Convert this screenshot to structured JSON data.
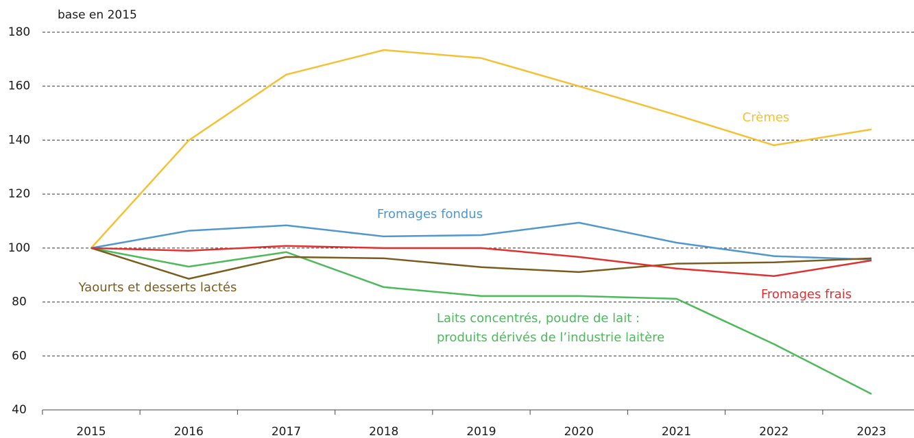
{
  "chart_data": {
    "type": "line",
    "y_label": "base en 2015",
    "categories": [
      "2015",
      "2016",
      "2017",
      "2018",
      "2019",
      "2020",
      "2021",
      "2022",
      "2023"
    ],
    "ylim": [
      40,
      180
    ],
    "yticks": [
      40,
      60,
      80,
      100,
      120,
      140,
      160,
      180
    ],
    "grid": true,
    "series": [
      {
        "name": "Crèmes",
        "color": "#f5c033",
        "values": [
          100,
          139.9,
          164.3,
          173.4,
          170.4,
          160,
          149.3,
          138.1,
          144
        ]
      },
      {
        "name": "Fromages fondus",
        "color": "#4f97cc",
        "values": [
          100,
          106.4,
          108.4,
          104.3,
          104.8,
          109.4,
          102,
          97,
          95.7
        ]
      },
      {
        "name": "Laits concentrés, poudre de lait :\nproduits dérivés de l’industrie laitère",
        "color": "#4cb95a",
        "values": [
          100,
          93.1,
          98.5,
          85.5,
          82.2,
          82.2,
          81.2,
          64.4,
          45.9
        ]
      },
      {
        "name": "Yaourts et desserts lactés",
        "color": "#7a5c1e",
        "values": [
          100,
          88.6,
          96.7,
          96.2,
          92.9,
          91.1,
          94.2,
          94.7,
          96.2
        ]
      },
      {
        "name": "Fromages frais",
        "color": "#e03131",
        "values": [
          100,
          99,
          100.8,
          100,
          100,
          96.7,
          92.4,
          89.6,
          95.4
        ]
      }
    ]
  }
}
